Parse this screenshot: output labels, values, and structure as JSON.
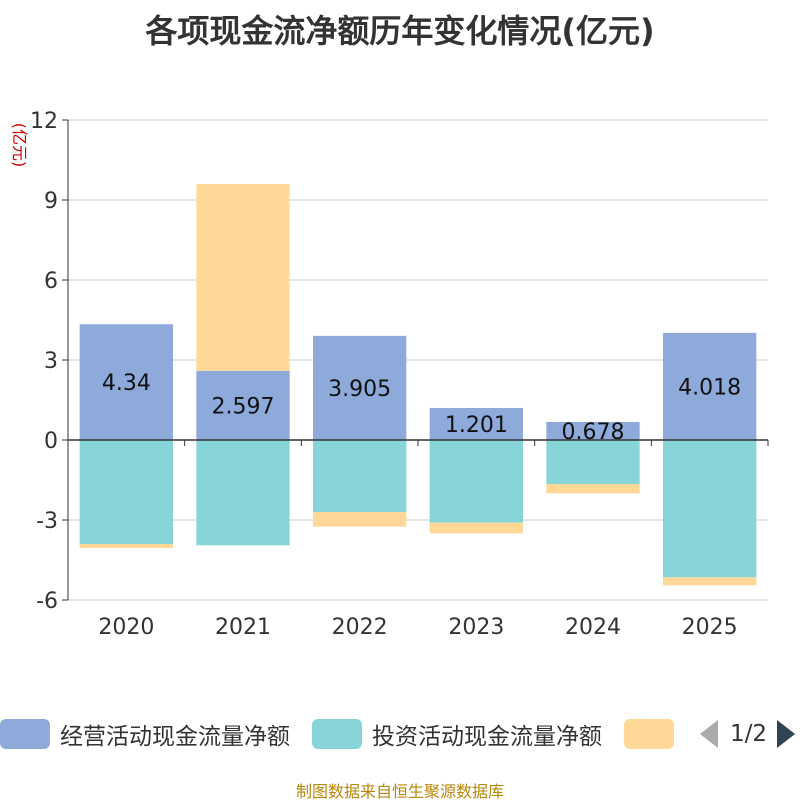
{
  "title": "各项现金流净额历年变化情况(亿元)",
  "unit": "(亿元)",
  "source": "制图数据来自恒生聚源数据库",
  "legend": {
    "items": [
      {
        "label": "经营活动现金流量净额",
        "color": "#8eaadb"
      },
      {
        "label": "投资活动现金流量净额",
        "color": "#87d5d8"
      },
      {
        "label": "",
        "color": "#ffd898"
      }
    ],
    "page": "1/2"
  },
  "chart_data": {
    "type": "bar",
    "stacked": true,
    "categories": [
      "2020",
      "2021",
      "2022",
      "2023",
      "2024",
      "2025"
    ],
    "ylim": [
      -6,
      12
    ],
    "yticks": [
      -6,
      -3,
      0,
      3,
      6,
      9,
      12
    ],
    "ylabel": "(亿元)",
    "series": [
      {
        "name": "经营活动现金流量净额",
        "color": "#8eaadb",
        "labels": true,
        "values": [
          4.34,
          2.597,
          3.905,
          1.201,
          0.678,
          4.018
        ]
      },
      {
        "name": "投资活动现金流量净额",
        "color": "#87d5d8",
        "values": [
          -3.9,
          -3.95,
          -2.7,
          -3.1,
          -1.65,
          -5.15
        ]
      },
      {
        "name": "",
        "color": "#ffd898",
        "values": [
          -0.15,
          7.0,
          -0.55,
          -0.4,
          -0.35,
          -0.3
        ]
      }
    ],
    "data_labels": [
      "4.34",
      "2.597",
      "3.905",
      "1.201",
      "0.678",
      "4.018"
    ]
  }
}
